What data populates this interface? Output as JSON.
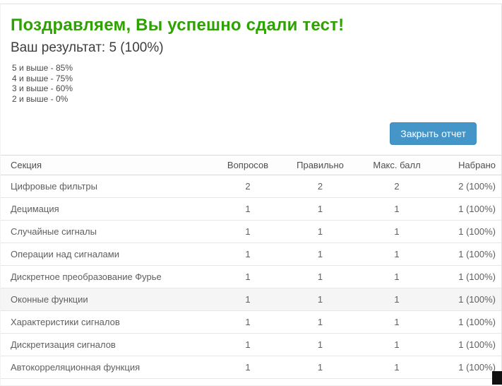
{
  "page": {
    "heading": "Поздравляем, Вы успешно сдали тест!",
    "result_summary": "Ваш результат: 5 (100%)",
    "grade_scale": [
      "5 и выше - 85%",
      "4 и выше - 75%",
      "3 и выше - 60%",
      "2 и выше - 0%"
    ],
    "close_button_label": "Закрыть отчет"
  },
  "colors": {
    "heading_green": "#2da200",
    "button_blue": "#4596c8",
    "table_border": "#e6e6e6",
    "hover_row_bg": "#f5f5f5"
  },
  "table": {
    "columns": [
      "Секция",
      "Вопросов",
      "Правильно",
      "Макс. балл",
      "Набрано"
    ],
    "hovered_row_index": 5,
    "rows": [
      {
        "section": "Цифровые фильтры",
        "questions": "2",
        "correct": "2",
        "max_score": "2",
        "scored": "2 (100%)"
      },
      {
        "section": "Децимация",
        "questions": "1",
        "correct": "1",
        "max_score": "1",
        "scored": "1 (100%)"
      },
      {
        "section": "Случайные сигналы",
        "questions": "1",
        "correct": "1",
        "max_score": "1",
        "scored": "1 (100%)"
      },
      {
        "section": "Операции над сигналами",
        "questions": "1",
        "correct": "1",
        "max_score": "1",
        "scored": "1 (100%)"
      },
      {
        "section": "Дискретное преобразование Фурье",
        "questions": "1",
        "correct": "1",
        "max_score": "1",
        "scored": "1 (100%)"
      },
      {
        "section": "Оконные функции",
        "questions": "1",
        "correct": "1",
        "max_score": "1",
        "scored": "1 (100%)"
      },
      {
        "section": "Характеристики сигналов",
        "questions": "1",
        "correct": "1",
        "max_score": "1",
        "scored": "1 (100%)"
      },
      {
        "section": "Дискретизация сигналов",
        "questions": "1",
        "correct": "1",
        "max_score": "1",
        "scored": "1 (100%)"
      },
      {
        "section": "Автокорреляционная функция",
        "questions": "1",
        "correct": "1",
        "max_score": "1",
        "scored": "1 (100%)"
      }
    ]
  }
}
